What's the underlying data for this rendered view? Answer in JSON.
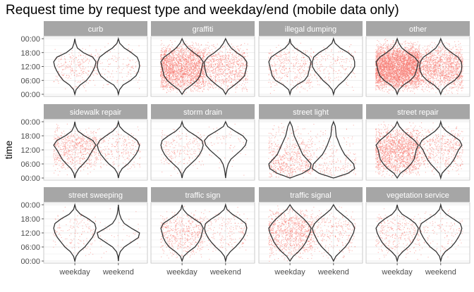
{
  "chart_data": {
    "type": "violin",
    "title": "Request time by request type and weekday/end (mobile data only)",
    "xlabel": "",
    "ylabel": "time",
    "x_categories": [
      "weekday",
      "weekend"
    ],
    "y_ticks": [
      "00:00",
      "18:00",
      "12:00",
      "06:00",
      "00:00"
    ],
    "y_range_hours": [
      0,
      24
    ],
    "y_reversed": true,
    "grid": true,
    "colors": {
      "points": "#f8766d",
      "violin": "#333333",
      "strip": "#a6a6a6",
      "panel_border": "#bfbfbf",
      "grid": "#e5e5e5"
    },
    "density_bins_hours": [
      0,
      2,
      4,
      6,
      8,
      10,
      12,
      14,
      16,
      18,
      20,
      22,
      24
    ],
    "panels": [
      {
        "name": "curb",
        "groups": [
          {
            "x": "weekday",
            "density": [
              0.0,
              0.04,
              0.12,
              0.4,
              0.85,
              1.0,
              0.95,
              0.85,
              0.72,
              0.55,
              0.25,
              0.06,
              0.0
            ],
            "points": 260
          },
          {
            "x": "weekend",
            "density": [
              0.0,
              0.06,
              0.25,
              0.55,
              0.8,
              0.88,
              0.9,
              0.85,
              0.75,
              0.52,
              0.2,
              0.05,
              0.0
            ],
            "points": 120
          }
        ]
      },
      {
        "name": "graffiti",
        "groups": [
          {
            "x": "weekday",
            "density": [
              0.0,
              0.1,
              0.28,
              0.55,
              0.85,
              1.0,
              0.95,
              0.9,
              0.85,
              0.7,
              0.45,
              0.15,
              0.0
            ],
            "points": 2400
          },
          {
            "x": "weekend",
            "density": [
              0.0,
              0.1,
              0.25,
              0.5,
              0.8,
              0.95,
              0.95,
              0.9,
              0.85,
              0.65,
              0.4,
              0.12,
              0.0
            ],
            "points": 900
          }
        ]
      },
      {
        "name": "illegal dumping",
        "groups": [
          {
            "x": "weekday",
            "density": [
              0.0,
              0.04,
              0.22,
              0.55,
              0.85,
              0.95,
              0.9,
              0.85,
              0.8,
              0.65,
              0.3,
              0.06,
              0.0
            ],
            "points": 380
          },
          {
            "x": "weekend",
            "density": [
              0.0,
              0.06,
              0.25,
              0.55,
              0.75,
              0.8,
              0.8,
              0.7,
              0.55,
              0.4,
              0.2,
              0.05,
              0.0
            ],
            "points": 180
          }
        ]
      },
      {
        "name": "other",
        "groups": [
          {
            "x": "weekday",
            "density": [
              0.0,
              0.08,
              0.22,
              0.5,
              0.82,
              1.0,
              0.95,
              0.9,
              0.82,
              0.62,
              0.3,
              0.08,
              0.0
            ],
            "points": 4200
          },
          {
            "x": "weekend",
            "density": [
              0.0,
              0.08,
              0.22,
              0.48,
              0.78,
              0.92,
              0.95,
              0.92,
              0.82,
              0.62,
              0.3,
              0.08,
              0.0
            ],
            "points": 1500
          }
        ]
      },
      {
        "name": "sidewalk repair",
        "groups": [
          {
            "x": "weekday",
            "density": [
              0.0,
              0.04,
              0.15,
              0.45,
              0.85,
              1.0,
              0.85,
              0.72,
              0.6,
              0.4,
              0.18,
              0.05,
              0.0
            ],
            "points": 700
          },
          {
            "x": "weekend",
            "density": [
              0.0,
              0.05,
              0.22,
              0.5,
              0.75,
              0.85,
              0.8,
              0.7,
              0.55,
              0.38,
              0.15,
              0.04,
              0.0
            ],
            "points": 260
          }
        ]
      },
      {
        "name": "storm drain",
        "groups": [
          {
            "x": "weekday",
            "density": [
              0.0,
              0.06,
              0.25,
              0.55,
              0.8,
              0.85,
              0.8,
              0.7,
              0.55,
              0.35,
              0.15,
              0.04,
              0.0
            ],
            "points": 220
          },
          {
            "x": "weekend",
            "density": [
              0.0,
              0.08,
              0.35,
              0.65,
              0.8,
              0.75,
              0.6,
              0.4,
              0.2,
              0.1,
              0.05,
              0.02,
              0.0
            ],
            "points": 60
          }
        ]
      },
      {
        "name": "street light",
        "groups": [
          {
            "x": "weekday",
            "density": [
              0.0,
              0.1,
              0.15,
              0.2,
              0.3,
              0.4,
              0.5,
              0.6,
              0.8,
              1.0,
              0.95,
              0.6,
              0.0
            ],
            "points": 650
          },
          {
            "x": "weekend",
            "density": [
              0.0,
              0.08,
              0.1,
              0.12,
              0.2,
              0.28,
              0.38,
              0.5,
              0.7,
              0.9,
              0.95,
              0.65,
              0.0
            ],
            "points": 200
          }
        ]
      },
      {
        "name": "street repair",
        "groups": [
          {
            "x": "weekday",
            "density": [
              0.0,
              0.1,
              0.3,
              0.55,
              0.82,
              1.0,
              0.9,
              0.85,
              0.8,
              0.65,
              0.45,
              0.15,
              0.0
            ],
            "points": 1700
          },
          {
            "x": "weekend",
            "density": [
              0.0,
              0.06,
              0.25,
              0.55,
              0.85,
              0.95,
              0.8,
              0.7,
              0.6,
              0.45,
              0.25,
              0.06,
              0.0
            ],
            "points": 500
          }
        ]
      },
      {
        "name": "street sweeping",
        "groups": [
          {
            "x": "weekday",
            "density": [
              0.0,
              0.05,
              0.22,
              0.55,
              0.8,
              0.85,
              0.8,
              0.7,
              0.55,
              0.4,
              0.18,
              0.05,
              0.0
            ],
            "points": 150
          },
          {
            "x": "weekend",
            "density": [
              0.0,
              0.02,
              0.05,
              0.12,
              0.25,
              0.55,
              0.9,
              0.85,
              0.55,
              0.25,
              0.08,
              0.02,
              0.0
            ],
            "points": 40
          }
        ]
      },
      {
        "name": "traffic sign",
        "groups": [
          {
            "x": "weekday",
            "density": [
              0.0,
              0.05,
              0.22,
              0.5,
              0.8,
              0.9,
              0.85,
              0.8,
              0.7,
              0.55,
              0.28,
              0.07,
              0.0
            ],
            "points": 550
          },
          {
            "x": "weekend",
            "density": [
              0.0,
              0.06,
              0.28,
              0.6,
              0.85,
              0.9,
              0.85,
              0.75,
              0.6,
              0.42,
              0.2,
              0.05,
              0.0
            ],
            "points": 200
          }
        ]
      },
      {
        "name": "traffic signal",
        "groups": [
          {
            "x": "weekday",
            "density": [
              0.0,
              0.15,
              0.4,
              0.65,
              0.85,
              1.0,
              0.95,
              0.85,
              0.75,
              0.6,
              0.4,
              0.15,
              0.0
            ],
            "points": 1000
          },
          {
            "x": "weekend",
            "density": [
              0.0,
              0.12,
              0.35,
              0.6,
              0.8,
              0.9,
              0.85,
              0.75,
              0.65,
              0.5,
              0.3,
              0.1,
              0.0
            ],
            "points": 300
          }
        ]
      },
      {
        "name": "vegetation service",
        "groups": [
          {
            "x": "weekday",
            "density": [
              0.0,
              0.05,
              0.22,
              0.55,
              0.82,
              0.95,
              0.9,
              0.8,
              0.68,
              0.5,
              0.25,
              0.06,
              0.0
            ],
            "points": 320
          },
          {
            "x": "weekend",
            "density": [
              0.0,
              0.05,
              0.22,
              0.5,
              0.78,
              0.85,
              0.8,
              0.7,
              0.58,
              0.42,
              0.18,
              0.05,
              0.0
            ],
            "points": 140
          }
        ]
      }
    ]
  }
}
